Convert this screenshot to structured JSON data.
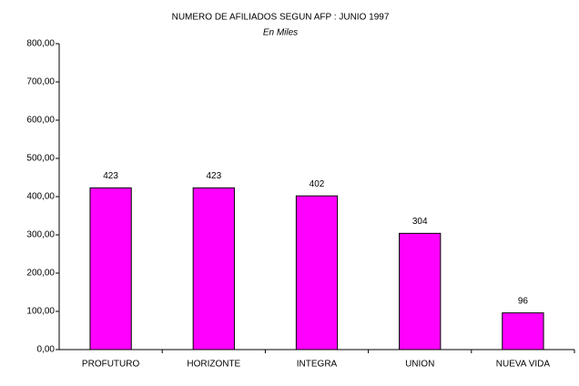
{
  "chart_data": {
    "type": "bar",
    "title": "NUMERO DE AFILIADOS SEGUN AFP : JUNIO 1997",
    "subtitle": "En Miles",
    "categories": [
      "PROFUTURO",
      "HORIZONTE",
      "INTEGRA",
      "UNION",
      "NUEVA VIDA"
    ],
    "values": [
      423,
      423,
      402,
      304,
      96
    ],
    "color": "#ff00ff",
    "ylim": [
      0,
      800
    ],
    "yticks": [
      {
        "value": 0,
        "label": "0,00"
      },
      {
        "value": 100,
        "label": "100,00"
      },
      {
        "value": 200,
        "label": "200,00"
      },
      {
        "value": 300,
        "label": "300,00"
      },
      {
        "value": 400,
        "label": "400,00"
      },
      {
        "value": 500,
        "label": "500,00"
      },
      {
        "value": 600,
        "label": "600,00"
      },
      {
        "value": 700,
        "label": "700,00"
      },
      {
        "value": 800,
        "label": "800,00"
      }
    ],
    "grid": false
  }
}
